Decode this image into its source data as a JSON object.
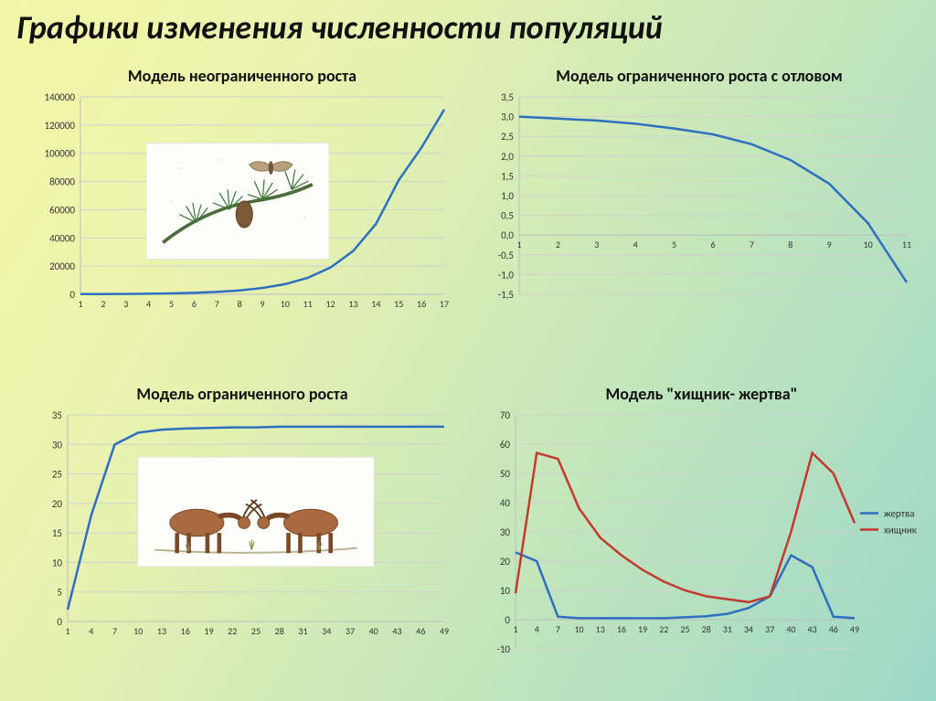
{
  "page": {
    "title": "Графики изменения численности популяций",
    "title_fontsize": 36,
    "title_color": "#111111",
    "background_gradient": [
      "#f2f7a8",
      "#e8f2b0",
      "#9cd8c8"
    ]
  },
  "chart1": {
    "title": "Модель неограниченного роста",
    "title_fontsize": 18,
    "type": "line",
    "x": [
      1,
      2,
      3,
      4,
      5,
      6,
      7,
      8,
      9,
      10,
      11,
      12,
      13,
      14,
      15,
      16,
      17
    ],
    "y": [
      100,
      150,
      250,
      400,
      650,
      1050,
      1700,
      2750,
      4450,
      7200,
      11700,
      19000,
      30800,
      50000,
      81000,
      104000,
      131000
    ],
    "ylim": [
      0,
      140000
    ],
    "ytick_step": 20000,
    "xlim": [
      1,
      17
    ],
    "line_color": "#2e6fc1",
    "grid_color": "#d0d0d0",
    "background_color": "transparent",
    "tick_fontsize": 11
  },
  "chart2": {
    "title": "Модель ограниченного роста с отловом",
    "title_fontsize": 18,
    "type": "line",
    "x": [
      1,
      2,
      3,
      4,
      5,
      6,
      7,
      8,
      9,
      10,
      11
    ],
    "y": [
      3.0,
      2.95,
      2.9,
      2.82,
      2.7,
      2.55,
      2.3,
      1.9,
      1.3,
      0.3,
      -1.2
    ],
    "ylim": [
      -1.5,
      3.5
    ],
    "ytick_step": 0.5,
    "xlim": [
      1,
      11
    ],
    "line_color": "#2e6fc1",
    "grid_color": "#d0d0d0",
    "background_color": "transparent",
    "tick_fontsize": 11
  },
  "chart3": {
    "title": "Модель ограниченного роста",
    "title_fontsize": 18,
    "type": "line",
    "x": [
      1,
      4,
      7,
      10,
      13,
      16,
      19,
      22,
      25,
      28,
      31,
      34,
      37,
      40,
      43,
      46,
      49
    ],
    "y": [
      2,
      18,
      30,
      32,
      32.5,
      32.7,
      32.8,
      32.9,
      32.9,
      33,
      33,
      33,
      33,
      33,
      33,
      33,
      33
    ],
    "ylim": [
      0,
      35
    ],
    "ytick_step": 5,
    "xlim": [
      1,
      49
    ],
    "line_color": "#2e6fc1",
    "grid_color": "#d0d0d0",
    "background_color": "transparent",
    "tick_fontsize": 11
  },
  "chart4": {
    "title": "Модель \"хищник- жертва\"",
    "title_fontsize": 18,
    "type": "line",
    "x": [
      1,
      4,
      7,
      10,
      13,
      16,
      19,
      22,
      25,
      28,
      31,
      34,
      37,
      40,
      43,
      46,
      49
    ],
    "series": [
      {
        "name": "жертва",
        "color": "#2e6fc1",
        "y": [
          23,
          20,
          1,
          0.5,
          0.5,
          0.5,
          0.5,
          0.5,
          0.8,
          1.2,
          2,
          4,
          8,
          22,
          18,
          1,
          0.5
        ]
      },
      {
        "name": "хищник",
        "color": "#c23a2e",
        "y": [
          9,
          57,
          55,
          38,
          28,
          22,
          17,
          13,
          10,
          8,
          7,
          6,
          8,
          30,
          57,
          50,
          33
        ]
      }
    ],
    "ylim": [
      -10,
      70
    ],
    "ytick_step": 10,
    "xlim": [
      1,
      49
    ],
    "grid_color": "#d0d0d0",
    "background_color": "transparent",
    "tick_fontsize": 11,
    "legend": {
      "items": [
        "жертва",
        "хищник"
      ],
      "position": "right"
    }
  },
  "illustrations": {
    "chart1_image": {
      "name": "moth-on-pine-branch",
      "approx_box": [
        130,
        60,
        200,
        130
      ]
    },
    "chart3_image": {
      "name": "two-antelopes-grazing",
      "approx_box": [
        120,
        40,
        260,
        120
      ]
    }
  }
}
